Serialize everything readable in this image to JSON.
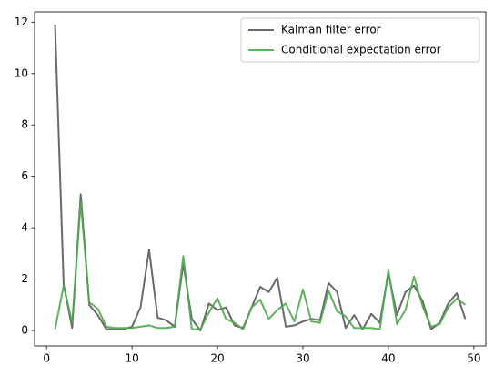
{
  "chart_data": {
    "type": "line",
    "x": [
      1,
      2,
      3,
      4,
      5,
      6,
      7,
      8,
      9,
      10,
      11,
      12,
      13,
      14,
      15,
      16,
      17,
      18,
      19,
      20,
      21,
      22,
      23,
      24,
      25,
      26,
      27,
      28,
      29,
      30,
      31,
      32,
      33,
      34,
      35,
      36,
      37,
      38,
      39,
      40,
      41,
      42,
      43,
      44,
      45,
      46,
      47,
      48,
      49
    ],
    "series": [
      {
        "name": "Kalman filter error",
        "color": "#595959",
        "values": [
          11.9,
          1.8,
          0.1,
          5.3,
          1.0,
          0.6,
          0.05,
          0.05,
          0.05,
          0.15,
          0.9,
          3.15,
          0.5,
          0.4,
          0.15,
          2.6,
          0.45,
          0.0,
          1.05,
          0.8,
          0.9,
          0.2,
          0.1,
          0.9,
          1.7,
          1.5,
          2.05,
          0.15,
          0.2,
          0.35,
          0.45,
          0.4,
          1.85,
          1.5,
          0.1,
          0.6,
          0.05,
          0.65,
          0.3,
          2.25,
          0.6,
          1.5,
          1.75,
          1.15,
          0.05,
          0.3,
          1.05,
          1.45,
          0.45
        ]
      },
      {
        "name": "Conditional expectation error",
        "color": "#4fa84f",
        "values": [
          0.05,
          1.75,
          0.3,
          5.0,
          1.1,
          0.85,
          0.15,
          0.1,
          0.1,
          0.1,
          0.15,
          0.2,
          0.1,
          0.1,
          0.15,
          2.9,
          0.05,
          0.05,
          0.7,
          1.25,
          0.45,
          0.3,
          0.05,
          0.9,
          1.2,
          0.45,
          0.8,
          1.05,
          0.35,
          1.6,
          0.35,
          0.3,
          1.55,
          0.75,
          0.55,
          0.1,
          0.1,
          0.1,
          0.05,
          2.35,
          0.25,
          0.8,
          2.1,
          0.95,
          0.15,
          0.25,
          0.9,
          1.25,
          1.0
        ]
      }
    ],
    "xlim": [
      -1.4,
      51.4
    ],
    "ylim": [
      -0.6,
      12.4
    ],
    "xticks": [
      0,
      10,
      20,
      30,
      40,
      50
    ],
    "yticks": [
      0,
      2,
      4,
      6,
      8,
      10,
      12
    ],
    "legend": "upper right"
  }
}
